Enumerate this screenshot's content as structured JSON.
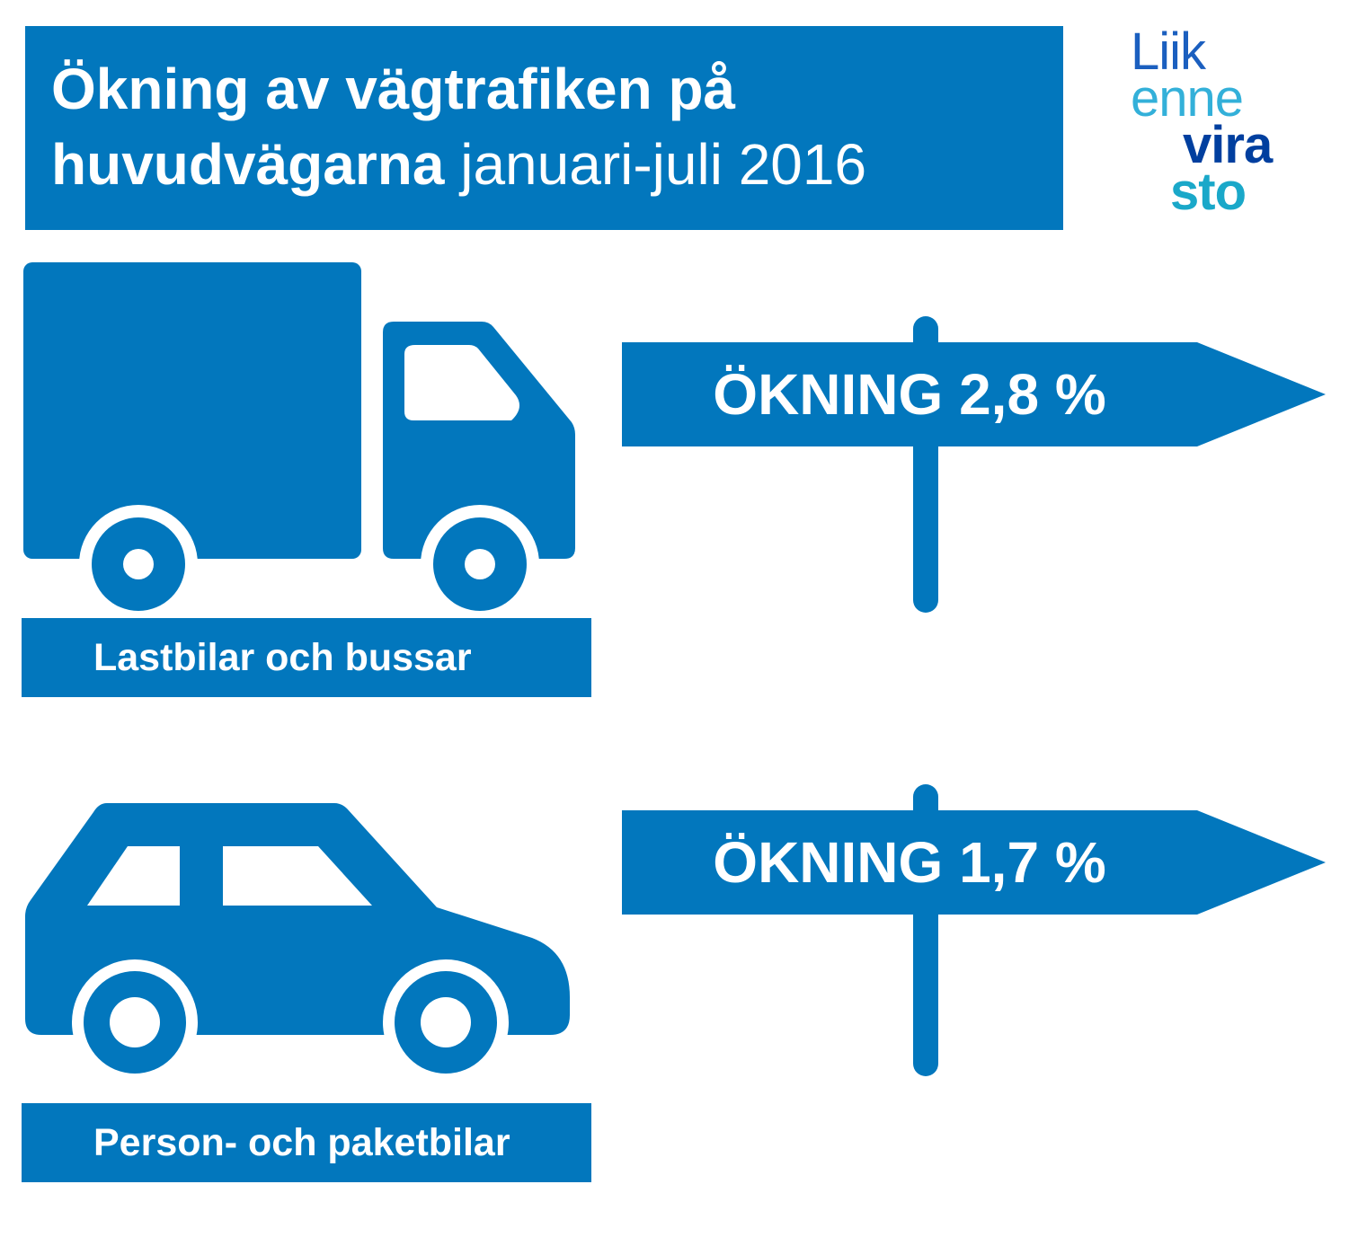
{
  "header": {
    "title_bold_line1": "Ökning av vägtrafiken på",
    "title_bold_line2": "huvudvägarna",
    "title_light_line2": " januari-juli 2016"
  },
  "logo": {
    "line1": "Liik",
    "line2": "enne",
    "line3": "vira",
    "line4": "sto"
  },
  "rows": [
    {
      "vehicle_icon": "truck-icon",
      "label": "Lastbilar och bussar",
      "sign_text": "ÖKNING 2,8 %"
    },
    {
      "vehicle_icon": "car-icon",
      "label": "Person- och paketbilar",
      "sign_text": "ÖKNING 1,7 %"
    }
  ],
  "colors": {
    "primary": "#0277bd",
    "logo_dark": "#003f9f",
    "logo_light": "#33b0d9",
    "logo_teal": "#1aa8c9"
  }
}
